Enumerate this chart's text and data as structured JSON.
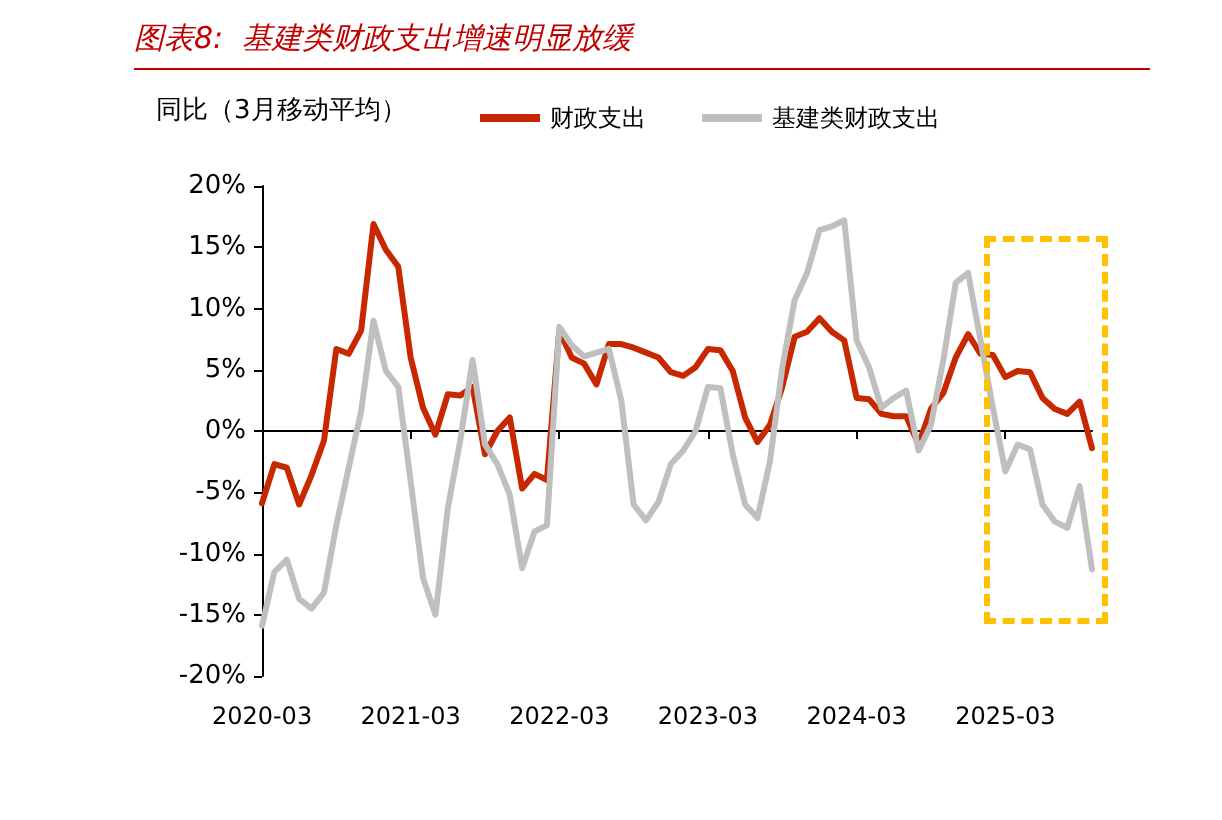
{
  "chart_data": {
    "type": "line",
    "title": "图表8:  基建类财政支出增速明显放缓",
    "legend_title": "同比（3月移动平均）",
    "categories": [
      "2020-03",
      null,
      null,
      null,
      null,
      null,
      null,
      null,
      null,
      null,
      null,
      null,
      "2021-03",
      null,
      null,
      null,
      null,
      null,
      null,
      null,
      null,
      null,
      null,
      null,
      "2022-03",
      null,
      null,
      null,
      null,
      null,
      null,
      null,
      null,
      null,
      null,
      null,
      "2023-03",
      null,
      null,
      null,
      null,
      null,
      null,
      null,
      null,
      null,
      null,
      null,
      "2024-03",
      null,
      null,
      null,
      null,
      null,
      null,
      null,
      null,
      null,
      null,
      null,
      "2025-03",
      null,
      null,
      null,
      null,
      null,
      null,
      null
    ],
    "series": [
      {
        "name": "财政支出",
        "color": "#c82800",
        "values": [
          -5.9,
          -2.7,
          -3.0,
          -6.0,
          -3.6,
          -0.8,
          6.7,
          6.3,
          8.2,
          16.9,
          14.8,
          13.4,
          6.0,
          1.9,
          -0.3,
          3.0,
          2.9,
          3.6,
          -1.9,
          0,
          1.1,
          -4.7,
          -3.5,
          -4.0,
          8.2,
          6.0,
          5.5,
          3.8,
          7.1,
          7.1,
          6.8,
          6.4,
          6.0,
          4.8,
          4.5,
          5.2,
          6.7,
          6.6,
          4.9,
          1.1,
          -0.9,
          0.5,
          3.6,
          7.7,
          8.1,
          9.2,
          8.1,
          7.4,
          2.7,
          2.6,
          1.4,
          1.2,
          1.2,
          -1.1,
          1.8,
          3.1,
          6.0,
          7.9,
          6.3,
          6.2,
          4.4,
          4.9,
          4.8,
          2.7,
          1.8,
          1.4,
          2.4,
          -1.4
        ]
      },
      {
        "name": "基建类财政支出",
        "color": "#bfbfbf",
        "values": [
          -15.9,
          -11.5,
          -10.5,
          -13.7,
          -14.5,
          -13.2,
          -7.7,
          -3.0,
          1.6,
          9.0,
          4.9,
          3.6,
          -4.1,
          -12.0,
          -15.0,
          -6.3,
          -0.8,
          5.8,
          -1.1,
          -2.7,
          -5.2,
          -11.2,
          -8.2,
          -7.7,
          8.5,
          7.0,
          6.1,
          6.4,
          6.7,
          2.5,
          -6.0,
          -7.3,
          -5.8,
          -2.7,
          -1.6,
          0,
          3.6,
          3.5,
          -1.9,
          -6.0,
          -7.1,
          -2.5,
          5.2,
          10.7,
          12.9,
          16.4,
          16.7,
          17.2,
          7.4,
          5.2,
          1.9,
          2.7,
          3.3,
          -1.6,
          0.5,
          5.8,
          12.1,
          12.9,
          7.4,
          1.9,
          -3.3,
          -1.1,
          -1.5,
          -6.0,
          -7.4,
          -7.9,
          -4.5,
          -11.3
        ]
      }
    ],
    "ylim": [
      -20,
      20
    ],
    "yticks": [
      {
        "value": -20,
        "label": "-20%"
      },
      {
        "value": -15,
        "label": "-15%"
      },
      {
        "value": -10,
        "label": "-10%"
      },
      {
        "value": -5,
        "label": "-5%"
      },
      {
        "value": 0,
        "label": "0%"
      },
      {
        "value": 5,
        "label": "5%"
      },
      {
        "value": 10,
        "label": "10%"
      },
      {
        "value": 15,
        "label": "15%"
      },
      {
        "value": 20,
        "label": "20%"
      }
    ],
    "legend": "top left",
    "marker": "none",
    "line_style": "solid"
  }
}
